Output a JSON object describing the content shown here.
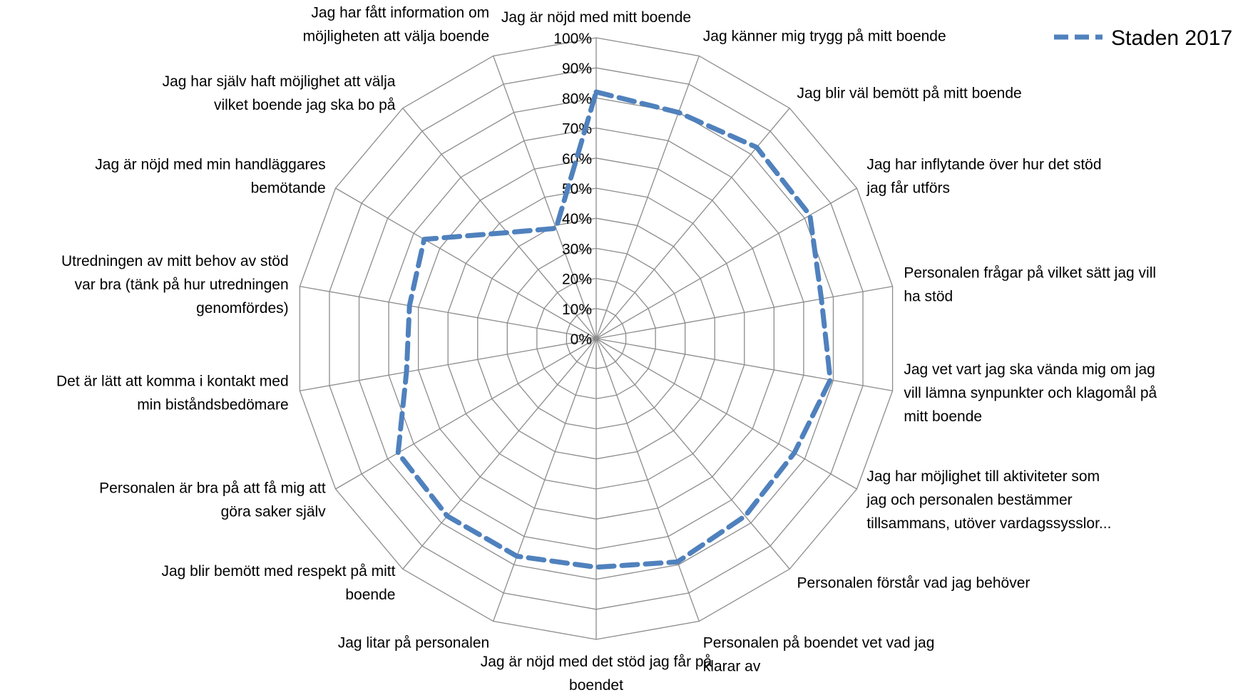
{
  "chart_data": {
    "type": "radar",
    "title": "",
    "rlim": [
      0,
      1
    ],
    "tick_labels": [
      "0%",
      "10%",
      "20%",
      "30%",
      "40%",
      "50%",
      "60%",
      "70%",
      "80%",
      "90%",
      "100%"
    ],
    "grid": true,
    "legend_position": "top-right",
    "categories": [
      [
        "Jag är nöjd med mitt boende"
      ],
      [
        "Jag känner mig trygg på mitt boende"
      ],
      [
        "Jag blir väl bemött på mitt boende"
      ],
      [
        "Jag har inflytande över hur det stöd",
        "jag får utförs"
      ],
      [
        "Personalen frågar på vilket sätt jag vill",
        "ha stöd"
      ],
      [
        "Jag vet vart jag ska vända mig om jag",
        "vill lämna synpunkter och klagomål på",
        "mitt boende"
      ],
      [
        "Jag har möjlighet till aktiviteter som",
        "jag och personalen bestämmer",
        "tillsammans, utöver vardagssysslor..."
      ],
      [
        "Personalen förstår vad jag behöver"
      ],
      [
        "Personalen på boendet vet vad jag",
        "klarar av"
      ],
      [
        "Jag är nöjd med det stöd jag får på",
        "boendet"
      ],
      [
        "Jag litar på personalen"
      ],
      [
        "Jag blir bemött med respekt på mitt",
        "boende"
      ],
      [
        "Personalen är bra på att få mig att",
        "göra saker själv"
      ],
      [
        "Det är lätt att komma i kontakt med",
        "min biståndsbedömare"
      ],
      [
        "Utredningen av mitt behov av stöd",
        "var bra (tänk på hur utredningen",
        "genomfördes)"
      ],
      [
        "Jag är nöjd med min handläggares",
        "bemötande"
      ],
      [
        "Jag har själv haft möjlighet att välja",
        "vilket boende jag ska bo på"
      ],
      [
        "Jag har fått information om",
        "möjligheten att välja boende"
      ]
    ],
    "series": [
      {
        "name": "Staden 2017",
        "color": "#4f81bd",
        "dash": "dashed",
        "values": [
          0.82,
          0.8,
          0.83,
          0.82,
          0.76,
          0.79,
          0.76,
          0.77,
          0.79,
          0.76,
          0.77,
          0.77,
          0.76,
          0.64,
          0.63,
          0.66,
          0.46,
          0.39
        ]
      }
    ]
  }
}
